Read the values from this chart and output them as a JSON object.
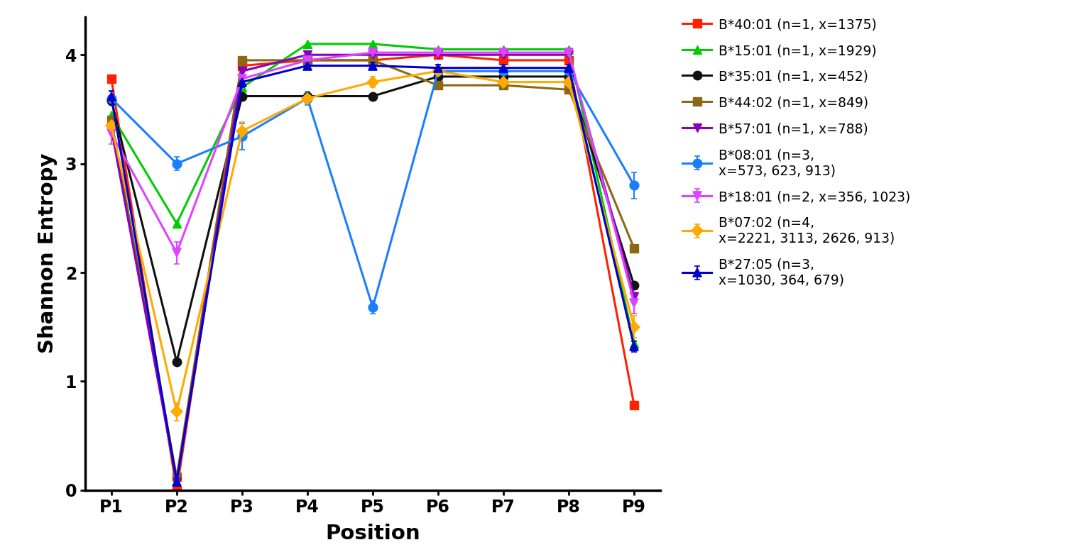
{
  "positions": [
    "P1",
    "P2",
    "P3",
    "P4",
    "P5",
    "P6",
    "P7",
    "P8",
    "P9"
  ],
  "series": [
    {
      "label": "B*08:01 (n=3,\nx=573, 623, 913)",
      "color": "#1a7fff",
      "marker": "o",
      "markersize": 9,
      "values": [
        3.6,
        3.0,
        3.25,
        3.6,
        1.68,
        3.85,
        3.85,
        3.85,
        2.8
      ],
      "yerr": [
        0.06,
        0.06,
        0.12,
        0.06,
        0.06,
        0.06,
        0.06,
        0.06,
        0.12
      ]
    },
    {
      "label": "B*40:01 (n=1, x=1375)",
      "color": "#ff2200",
      "marker": "s",
      "markersize": 9,
      "values": [
        3.78,
        0.0,
        3.9,
        3.95,
        3.95,
        4.0,
        3.95,
        3.95,
        0.78
      ],
      "yerr": [
        0,
        0,
        0,
        0,
        0,
        0,
        0,
        0,
        0
      ]
    },
    {
      "label": "B*15:01 (n=1, x=1929)",
      "color": "#00cc00",
      "marker": "^",
      "markersize": 9,
      "values": [
        3.45,
        2.45,
        3.7,
        4.1,
        4.1,
        4.05,
        4.05,
        4.05,
        1.35
      ],
      "yerr": [
        0,
        0,
        0,
        0,
        0,
        0,
        0,
        0,
        0
      ]
    },
    {
      "label": "B*18:01 (n=2, x=356, 1023)",
      "color": "#dd44ff",
      "marker": "v",
      "markersize": 9,
      "values": [
        3.28,
        2.18,
        3.78,
        3.95,
        4.02,
        4.02,
        4.02,
        4.02,
        1.72
      ],
      "yerr": [
        0.1,
        0.1,
        0.05,
        0.02,
        0.02,
        0.02,
        0.02,
        0.02,
        0.1
      ]
    },
    {
      "label": "B*07:02 (n=4,\nx=2221, 3113, 2626, 913)",
      "color": "#ffaa00",
      "marker": "D",
      "markersize": 8,
      "values": [
        3.35,
        0.72,
        3.3,
        3.6,
        3.75,
        3.85,
        3.75,
        3.75,
        1.5
      ],
      "yerr": [
        0.08,
        0.08,
        0.08,
        0.05,
        0.05,
        0.05,
        0.05,
        0.05,
        0.1
      ]
    },
    {
      "label": "B*35:01 (n=1, x=452)",
      "color": "#111111",
      "marker": "o",
      "markersize": 9,
      "values": [
        3.58,
        1.18,
        3.62,
        3.62,
        3.62,
        3.8,
        3.8,
        3.8,
        1.88
      ],
      "yerr": [
        0,
        0,
        0,
        0,
        0,
        0,
        0,
        0,
        0
      ]
    },
    {
      "label": "B*44:02 (n=1, x=849)",
      "color": "#8B6914",
      "marker": "s",
      "markersize": 9,
      "values": [
        3.4,
        0.12,
        3.95,
        3.95,
        3.95,
        3.72,
        3.72,
        3.68,
        2.22
      ],
      "yerr": [
        0,
        0,
        0,
        0,
        0,
        0,
        0,
        0,
        0
      ]
    },
    {
      "label": "B*27:05 (n=3,\nx=1030, 364, 679)",
      "color": "#0000cc",
      "marker": "^",
      "markersize": 9,
      "values": [
        3.62,
        0.08,
        3.75,
        3.9,
        3.9,
        3.88,
        3.88,
        3.88,
        1.32
      ],
      "yerr": [
        0.05,
        0.02,
        0.05,
        0.03,
        0.03,
        0.03,
        0.03,
        0.03,
        0.05
      ]
    },
    {
      "label": "B*57:01 (n=1, x=788)",
      "color": "#8800bb",
      "marker": "v",
      "markersize": 9,
      "values": [
        3.32,
        0.08,
        3.85,
        4.0,
        4.0,
        4.0,
        4.0,
        4.0,
        1.78
      ],
      "yerr": [
        0,
        0,
        0,
        0,
        0,
        0,
        0,
        0,
        0
      ]
    }
  ],
  "xlabel": "Position",
  "ylabel": "Shannon Entropy",
  "ylim": [
    0,
    4.35
  ],
  "yticks": [
    0,
    1,
    2,
    3,
    4
  ],
  "background_color": "#ffffff",
  "linewidth": 2.2
}
